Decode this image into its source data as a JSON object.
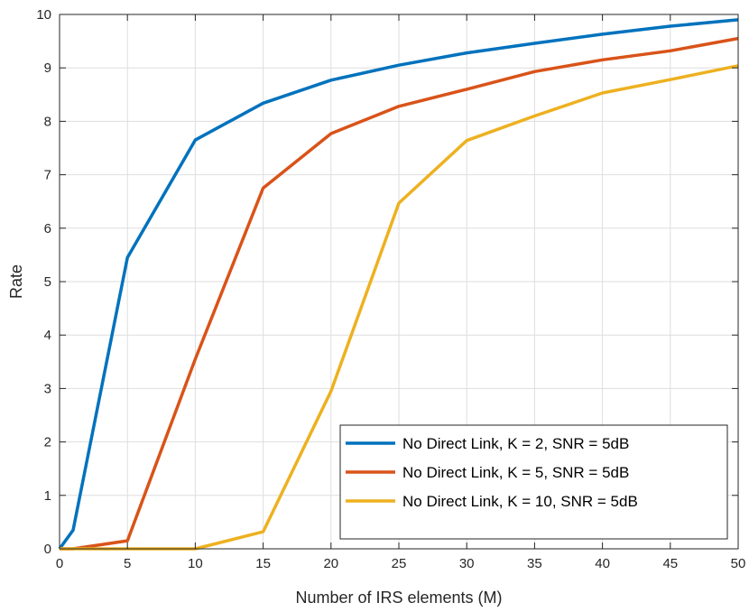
{
  "chart_data": {
    "type": "line",
    "title": "",
    "xlabel": "Number of IRS elements (M)",
    "ylabel": "Rate",
    "xlim": [
      0,
      50
    ],
    "ylim": [
      0,
      10
    ],
    "xticks": [
      0,
      5,
      10,
      15,
      20,
      25,
      30,
      35,
      40,
      45,
      50
    ],
    "yticks": [
      0,
      1,
      2,
      3,
      4,
      5,
      6,
      7,
      8,
      9,
      10
    ],
    "grid": true,
    "legend_position": "bottom-right",
    "series": [
      {
        "name": "No Direct Link, K = 2, SNR = 5dB",
        "color": "#0072BD",
        "x": [
          0,
          1,
          5,
          10,
          15,
          20,
          25,
          30,
          35,
          40,
          45,
          50
        ],
        "y": [
          0,
          0.35,
          5.45,
          7.65,
          8.34,
          8.77,
          9.05,
          9.28,
          9.46,
          9.63,
          9.78,
          9.9
        ]
      },
      {
        "name": "No Direct Link, K = 5, SNR = 5dB",
        "color": "#D95319",
        "x": [
          0,
          1,
          5,
          10,
          15,
          20,
          25,
          30,
          35,
          40,
          45,
          50
        ],
        "y": [
          0,
          0,
          0.15,
          3.55,
          6.75,
          7.77,
          8.28,
          8.6,
          8.93,
          9.15,
          9.32,
          9.55
        ]
      },
      {
        "name": "No Direct Link, K = 10, SNR = 5dB",
        "color": "#EDB120",
        "x": [
          0,
          1,
          5,
          10,
          15,
          20,
          25,
          30,
          35,
          40,
          45,
          50
        ],
        "y": [
          0,
          0,
          0,
          0,
          0.32,
          2.95,
          6.47,
          7.64,
          8.1,
          8.53,
          8.78,
          9.04
        ]
      }
    ]
  }
}
